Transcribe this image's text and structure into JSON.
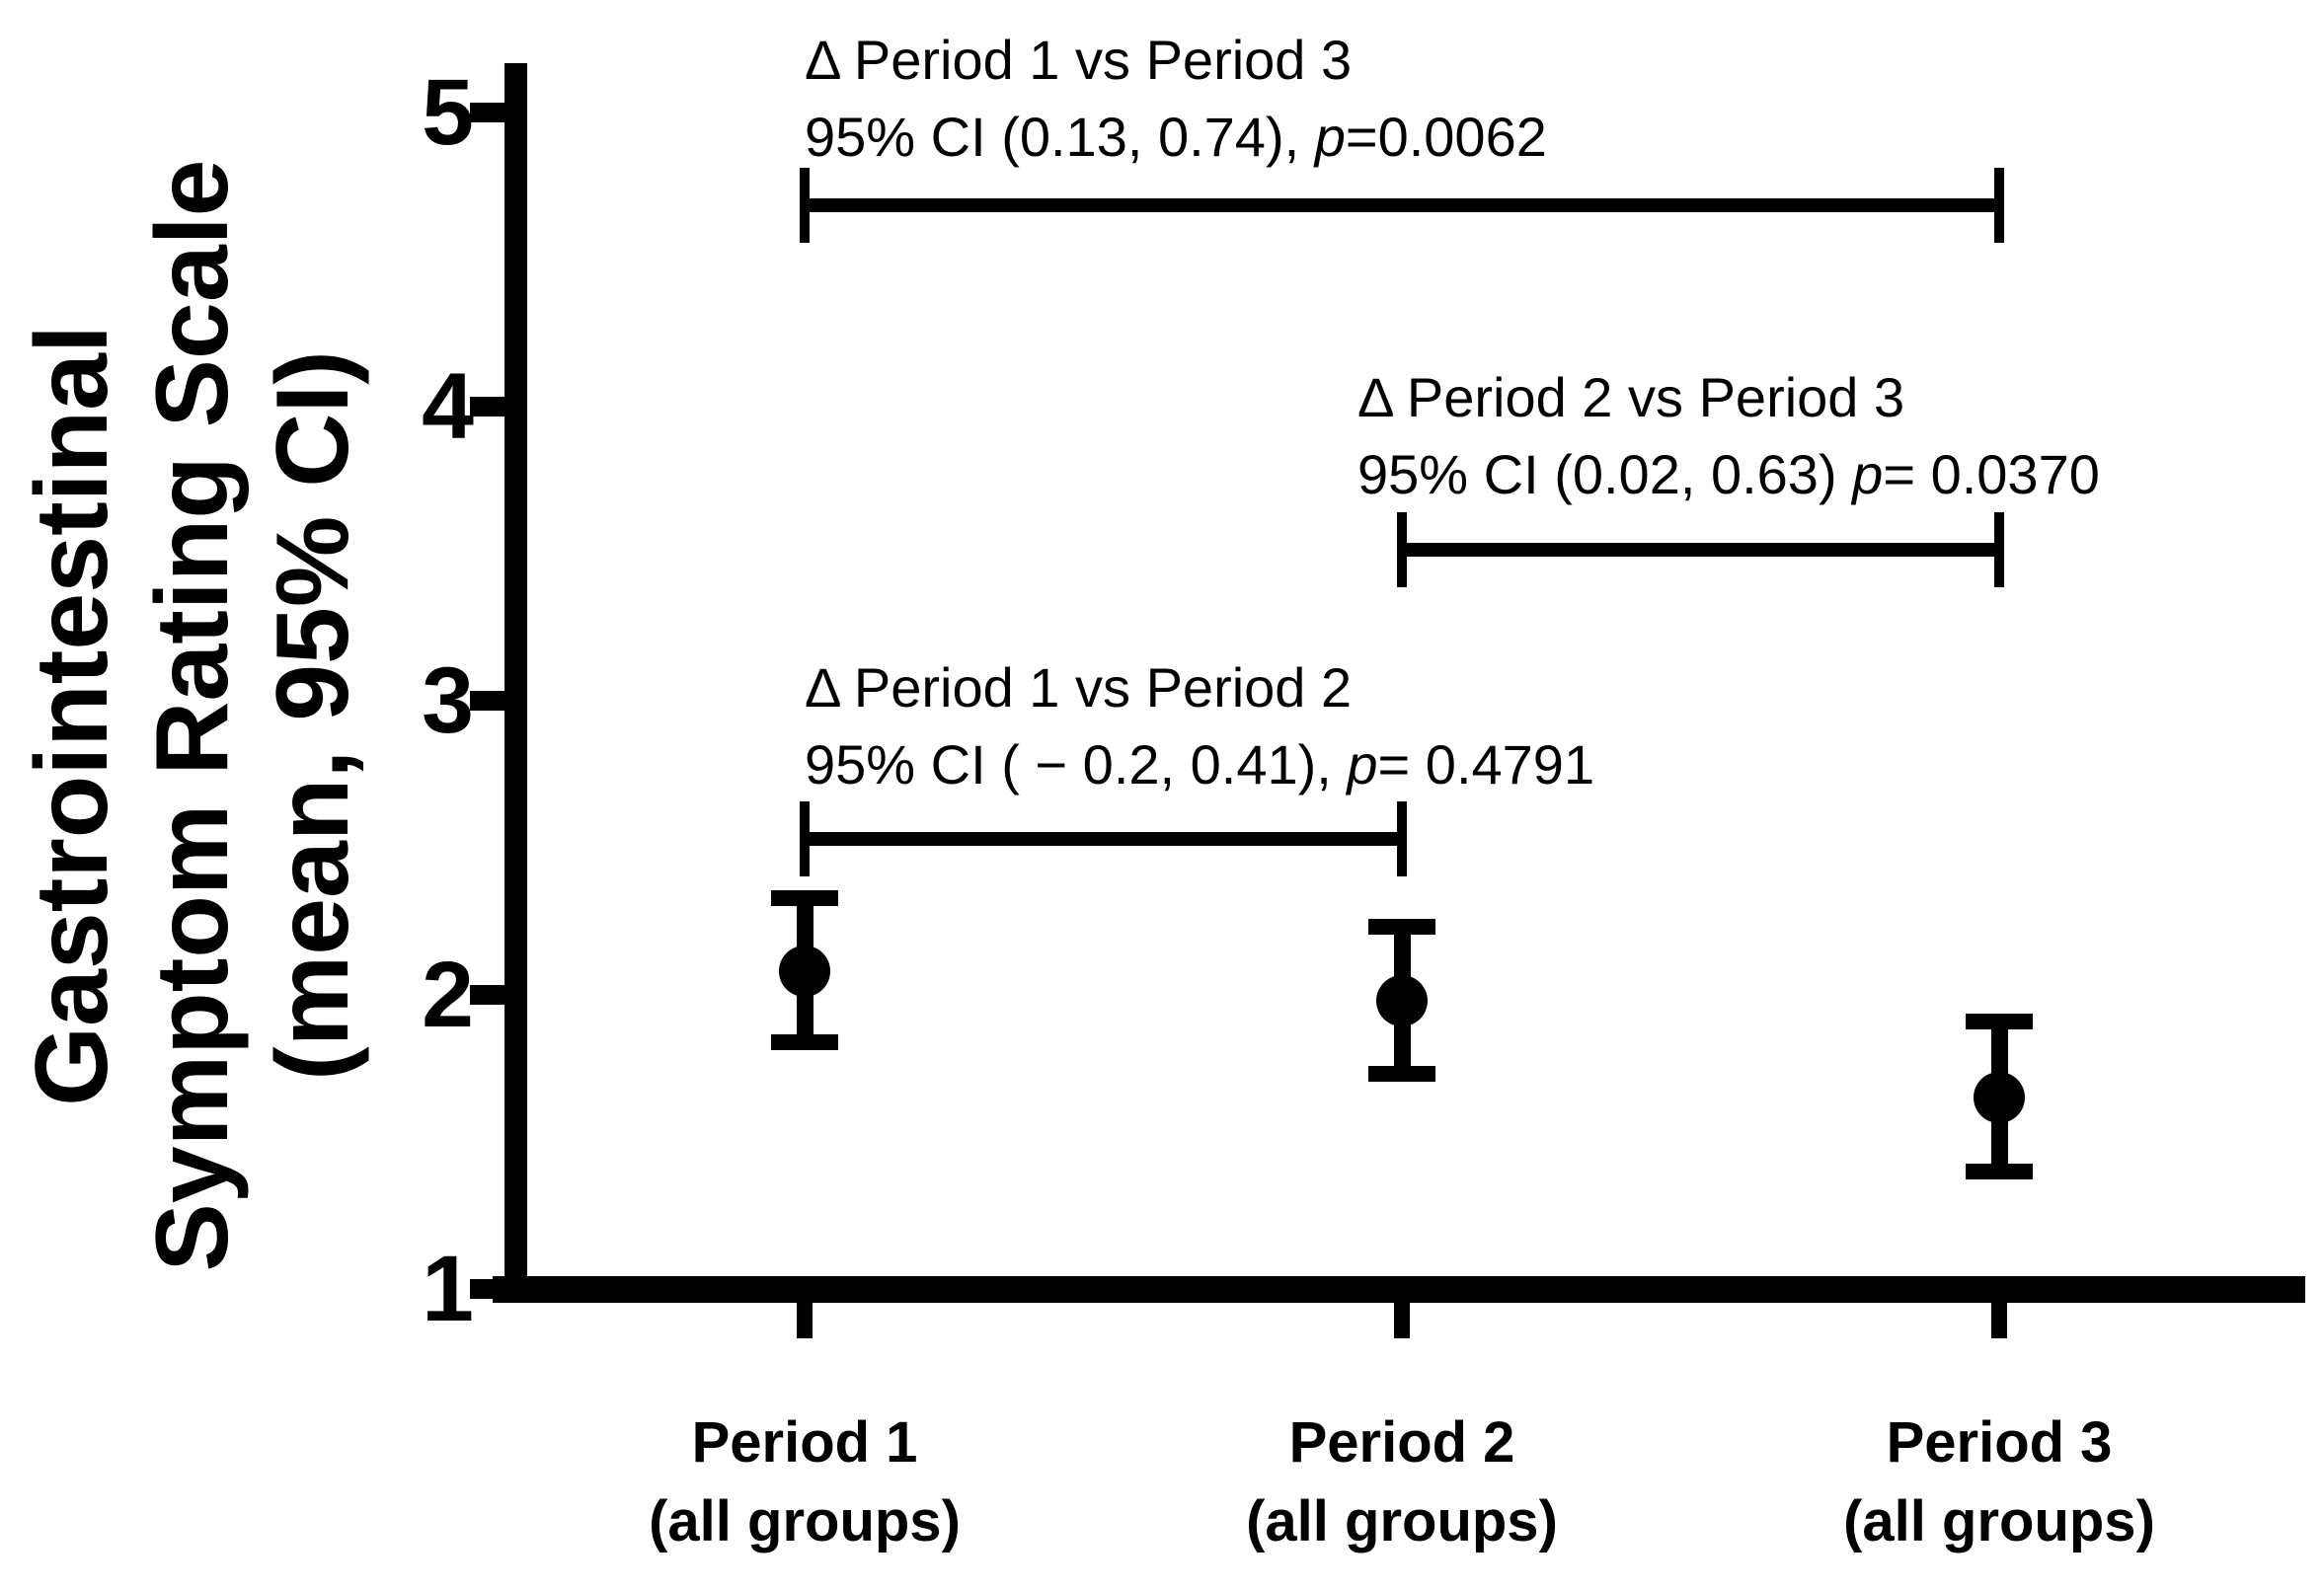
{
  "chart_data": {
    "type": "scatter",
    "title": "",
    "ylabel_lines": [
      "Gastrointestinal",
      "Symptom Rating Scale",
      "(mean, 95% CI)"
    ],
    "ylim": [
      1,
      5
    ],
    "y_ticks": [
      5,
      4,
      3,
      2,
      1
    ],
    "grid": false,
    "colors": {
      "marker": "#000000",
      "background": "#ffffff"
    },
    "points": [
      {
        "category": "Period 1",
        "category_line2": "(all groups)",
        "mean": 2.08,
        "ci_low": 1.84,
        "ci_high": 2.33
      },
      {
        "category": "Period 2",
        "category_line2": "(all groups)",
        "mean": 1.98,
        "ci_low": 1.73,
        "ci_high": 2.23
      },
      {
        "category": "Period 3",
        "category_line2": "(all groups)",
        "mean": 1.65,
        "ci_low": 1.4,
        "ci_high": 1.91
      }
    ],
    "comparisons": [
      {
        "label": "Δ Period 1 vs Period 3",
        "ci_text": "95% CI (0.13, 0.74), ",
        "p_symbol": "p",
        "p_text": "=0.0062",
        "from_index": 0,
        "to_index": 2
      },
      {
        "label": "Δ Period 2 vs Period 3",
        "ci_text": "95% CI (0.02, 0.63) ",
        "p_symbol": "p",
        "p_text": "= 0.0370",
        "from_index": 1,
        "to_index": 2
      },
      {
        "label": "Δ Period 1 vs Period 2",
        "ci_text": "95% CI ( − 0.2, 0.41), ",
        "p_symbol": "p",
        "p_text": "= 0.4791",
        "from_index": 0,
        "to_index": 1
      }
    ]
  }
}
